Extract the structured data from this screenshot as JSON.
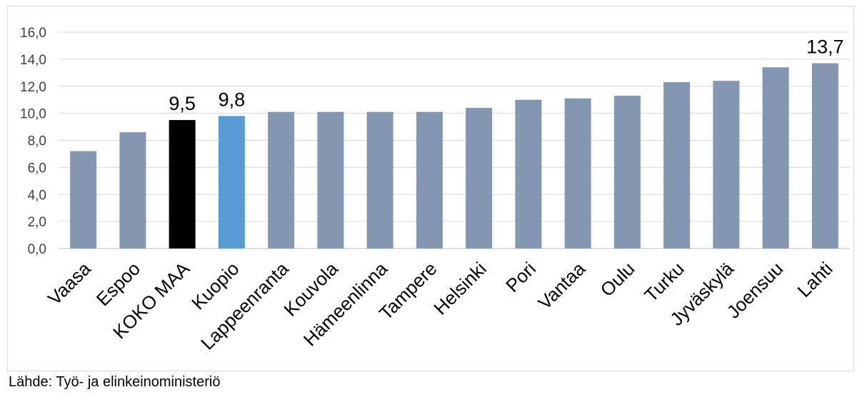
{
  "source_note": "Lähde: Työ- ja elinkeinoministeriö",
  "chart_data": {
    "type": "bar",
    "categories": [
      "Vaasa",
      "Espoo",
      "KOKO MAA",
      "Kuopio",
      "Lappeenranta",
      "Kouvola",
      "Hämeenlinna",
      "Tampere",
      "Helsinki",
      "Pori",
      "Vantaa",
      "Oulu",
      "Turku",
      "Jyväskylä",
      "Joensuu",
      "Lahti"
    ],
    "values": [
      7.2,
      8.6,
      9.5,
      9.8,
      10.1,
      10.1,
      10.1,
      10.1,
      10.4,
      11.0,
      11.1,
      11.3,
      12.3,
      12.4,
      13.4,
      13.7
    ],
    "data_labels": {
      "KOKO MAA": "9,5",
      "Kuopio": "9,8",
      "Lahti": "13,7"
    },
    "ylim": [
      0,
      16
    ],
    "yticks": [
      "0,0",
      "2,0",
      "4,0",
      "6,0",
      "8,0",
      "10,0",
      "12,0",
      "14,0",
      "16,0"
    ],
    "grid": true,
    "colors": {
      "default": "#8497b0",
      "KOKO MAA": "#000000",
      "Kuopio": "#5b9bd5",
      "grid": "#d9d9d9",
      "axis": "#bfbfbf"
    }
  }
}
